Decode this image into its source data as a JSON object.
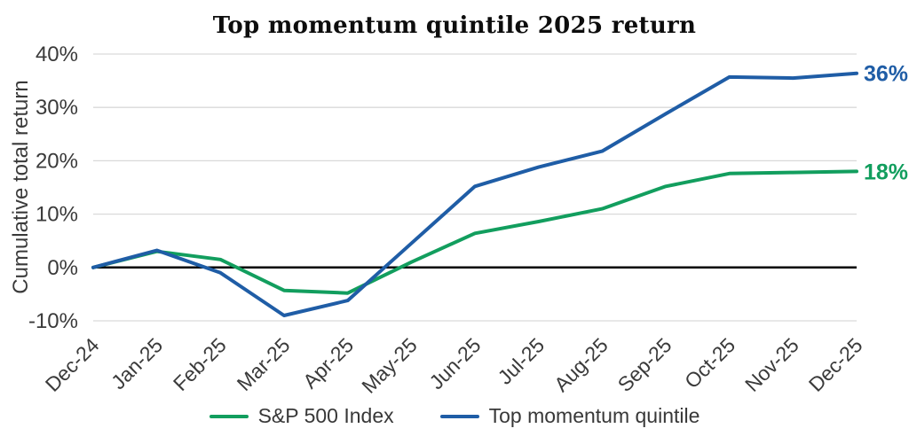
{
  "chart_data": {
    "type": "line",
    "title": "Top momentum quintile 2025 return",
    "xlabel": "",
    "ylabel": "Cumulative total return",
    "categories": [
      "Dec-24",
      "Jan-25",
      "Feb-25",
      "Mar-25",
      "Apr-25",
      "May-25",
      "Jun-25",
      "Jul-25",
      "Aug-25",
      "Sep-25",
      "Oct-25",
      "Nov-25",
      "Dec-25"
    ],
    "ylim": [
      -10,
      40
    ],
    "yticks": [
      {
        "value": 40,
        "label": "40%"
      },
      {
        "value": 30,
        "label": "30%"
      },
      {
        "value": 20,
        "label": "20%"
      },
      {
        "value": 10,
        "label": "10%"
      },
      {
        "value": 0,
        "label": "0%"
      },
      {
        "value": -10,
        "label": "-10%"
      }
    ],
    "grid": true,
    "zero_line": true,
    "legend_position": "bottom",
    "series": [
      {
        "name": "S&P 500 Index",
        "color": "#129e5e",
        "end_label": "18%",
        "values": [
          0,
          3,
          1.5,
          -4.3,
          -4.8,
          1,
          6.4,
          8.6,
          11,
          15.2,
          17.6,
          17.8,
          18
        ]
      },
      {
        "name": "Top momentum quintile",
        "color": "#1f5da6",
        "end_label": "36%",
        "values": [
          0,
          3.2,
          -1,
          -9,
          -6.2,
          4.5,
          15.2,
          18.8,
          21.8,
          28.8,
          35.7,
          35.5,
          36.4
        ]
      }
    ],
    "grid_color": "#d9d9d9",
    "zero_line_color": "#000000",
    "tick_label_color": "#3a3a3a"
  }
}
